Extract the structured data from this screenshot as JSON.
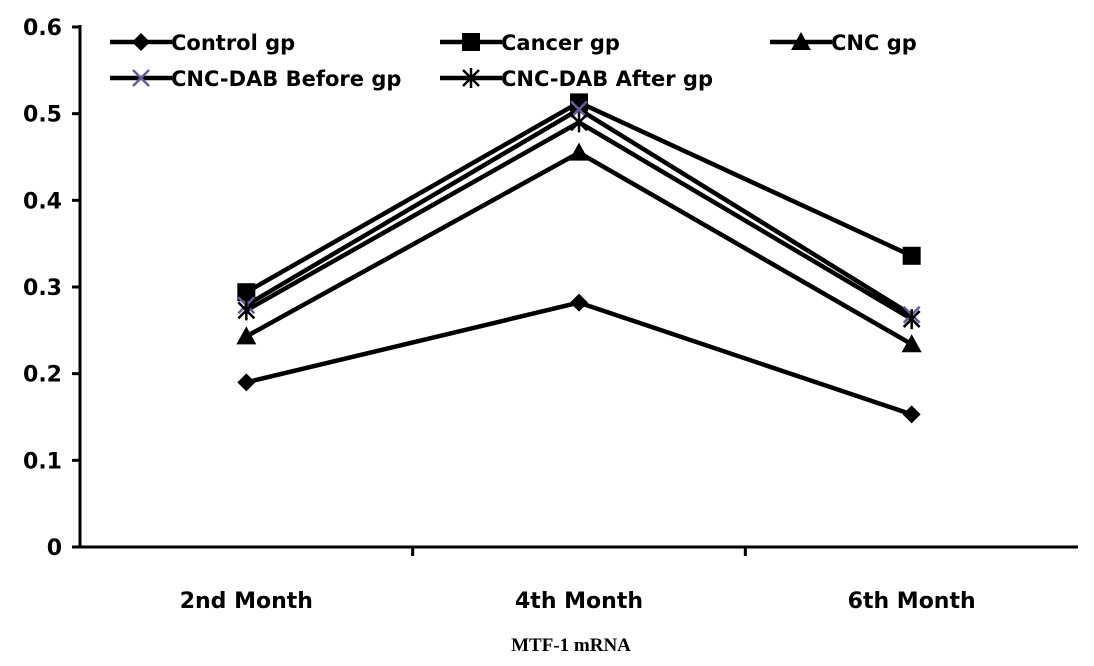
{
  "chart_data": {
    "type": "line",
    "title": "",
    "xlabel": "MTF-1 mRNA",
    "ylabel": "",
    "categories": [
      "2nd Month",
      "4th Month",
      "6th Month"
    ],
    "ylim": [
      0,
      0.6
    ],
    "yticks": [
      "0",
      "0.1",
      "0.2",
      "0.3",
      "0.4",
      "0.5",
      "0.6"
    ],
    "grid": false,
    "legend_position": "top",
    "series": [
      {
        "name": "Control gp",
        "marker": "diamond",
        "color": "#000000",
        "values": [
          0.19,
          0.282,
          0.153
        ]
      },
      {
        "name": "Cancer gp",
        "marker": "square",
        "color": "#000000",
        "values": [
          0.294,
          0.513,
          0.336
        ]
      },
      {
        "name": "CNC gp",
        "marker": "triangle",
        "color": "#000000",
        "values": [
          0.243,
          0.455,
          0.234
        ]
      },
      {
        "name": "CNC-DAB Before gp",
        "marker": "x",
        "color": "#000000",
        "marker_color": "#6b5b9a",
        "values": [
          0.279,
          0.505,
          0.268
        ]
      },
      {
        "name": "CNC-DAB After gp",
        "marker": "asterisk",
        "color": "#000000",
        "values": [
          0.273,
          0.49,
          0.263
        ]
      }
    ]
  }
}
